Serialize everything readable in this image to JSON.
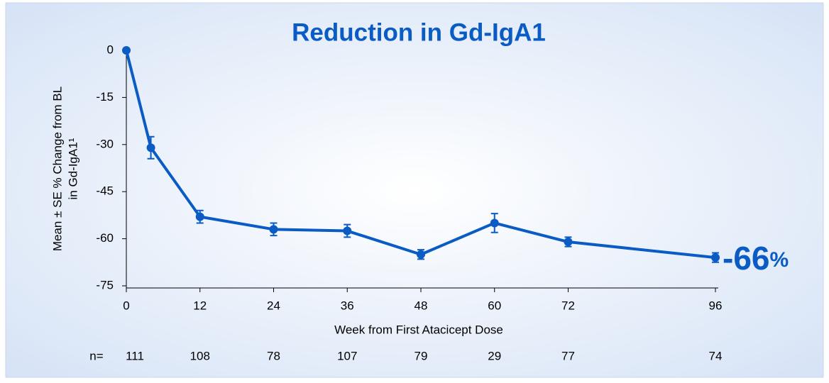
{
  "chart_data": {
    "type": "line",
    "title": "Reduction in Gd-IgA1",
    "y_label": [
      "Mean ± SE % Change from BL",
      "in Gd-IgA1¹"
    ],
    "x_label": "Week from First Atacicept Dose",
    "x": [
      0,
      4,
      12,
      24,
      36,
      48,
      60,
      72,
      96
    ],
    "series": [
      {
        "color": "#0a5bc4",
        "values": [
          0,
          -31,
          -53,
          -57,
          -57.5,
          -65,
          -55,
          -61,
          -66
        ],
        "errors": [
          0,
          3.5,
          2,
          2,
          2,
          1.5,
          3,
          1.5,
          1.5
        ]
      }
    ],
    "xlim": [
      0,
      96
    ],
    "xticks": [
      0,
      12,
      24,
      36,
      48,
      60,
      72,
      96
    ],
    "ylim": [
      -75,
      0
    ],
    "yticks": [
      0,
      -15,
      -30,
      -45,
      -60,
      -75
    ],
    "n_label": "n=",
    "n_counts": [
      111,
      108,
      78,
      107,
      79,
      29,
      77,
      74
    ],
    "annotation": {
      "text": "-66",
      "unit": "%"
    }
  }
}
